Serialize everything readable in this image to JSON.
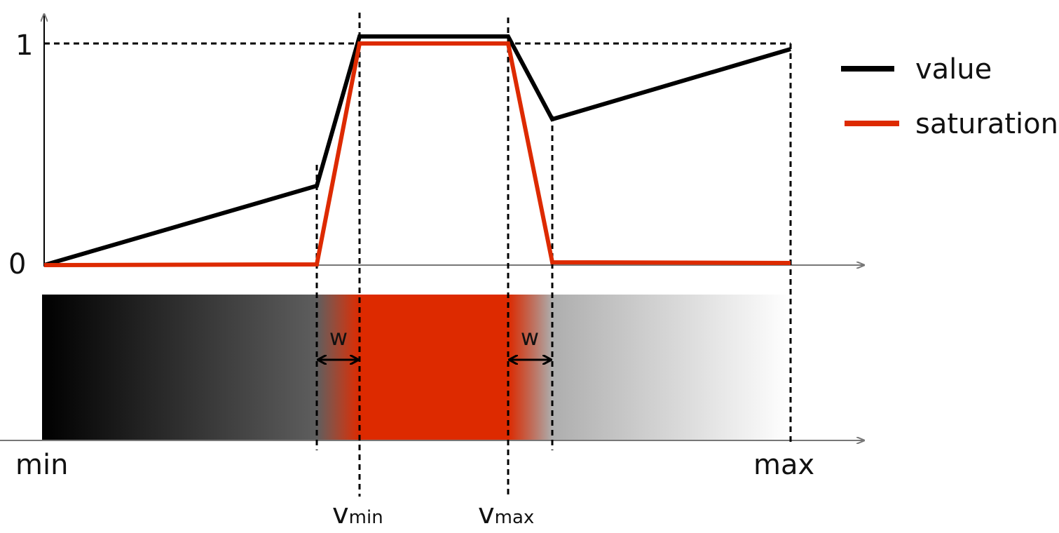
{
  "y_axis": {
    "top_label": "1",
    "bottom_label": "0"
  },
  "legend": [
    {
      "label": "value"
    },
    {
      "label": "saturation"
    }
  ],
  "width_labels": [
    "w",
    "w"
  ],
  "x_axis": {
    "start_label": "min",
    "end_label": "max"
  },
  "thresholds": [
    {
      "base": "v",
      "subscript": "min"
    },
    {
      "base": "v",
      "subscript": "max"
    }
  ]
}
